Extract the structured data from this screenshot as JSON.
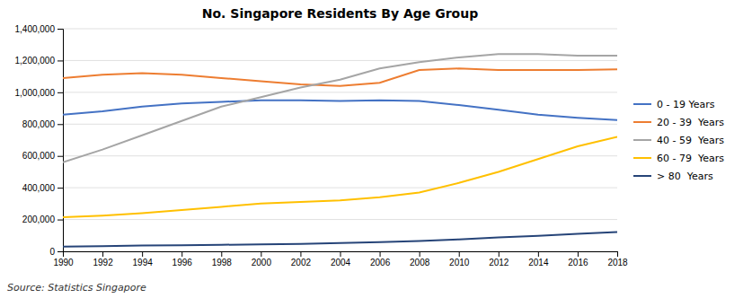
{
  "chart_data": {
    "type": "line",
    "title": "No. Singapore Residents By Age Group",
    "annotations": [
      "Source: Statistics Singapore"
    ],
    "x": [
      1990,
      1992,
      1994,
      1996,
      1998,
      2000,
      2002,
      2004,
      2006,
      2008,
      2010,
      2012,
      2014,
      2016,
      2018
    ],
    "xlim": [
      1990,
      2018
    ],
    "xticks": [
      1990,
      1992,
      1994,
      1996,
      1998,
      2000,
      2002,
      2004,
      2006,
      2008,
      2010,
      2012,
      2014,
      2016,
      2018
    ],
    "series": [
      {
        "name": "0 - 19 Years",
        "color": "#4472C4",
        "values": [
          860000,
          880000,
          910000,
          930000,
          940000,
          950000,
          950000,
          945000,
          950000,
          945000,
          920000,
          890000,
          860000,
          840000,
          825000
        ]
      },
      {
        "name": "20 - 39  Years",
        "color": "#ED7D31",
        "values": [
          1090000,
          1110000,
          1120000,
          1110000,
          1090000,
          1070000,
          1050000,
          1040000,
          1060000,
          1140000,
          1150000,
          1140000,
          1140000,
          1140000,
          1145000
        ]
      },
      {
        "name": "40 - 59  Years",
        "color": "#A5A5A5",
        "values": [
          560000,
          640000,
          730000,
          820000,
          910000,
          970000,
          1030000,
          1080000,
          1150000,
          1190000,
          1220000,
          1240000,
          1240000,
          1230000,
          1230000
        ]
      },
      {
        "name": "60 - 79  Years",
        "color": "#FFC000",
        "values": [
          215000,
          225000,
          240000,
          260000,
          280000,
          300000,
          310000,
          320000,
          340000,
          370000,
          430000,
          500000,
          580000,
          660000,
          720000
        ]
      },
      {
        "name": "> 80  Years",
        "color": "#264478",
        "values": [
          30000,
          33000,
          36000,
          38000,
          41000,
          44000,
          47000,
          52000,
          58000,
          65000,
          75000,
          88000,
          98000,
          110000,
          122000
        ]
      }
    ],
    "ylim": [
      0,
      1400000
    ],
    "yticks": [
      0,
      {
        "value": 200000,
        "label": "200,000"
      },
      {
        "value": 400000,
        "label": "400,000"
      },
      {
        "value": 600000,
        "label": "600,000"
      },
      {
        "value": 800000,
        "label": "800,000"
      },
      {
        "value": 1000000,
        "label": "1,000,000"
      },
      {
        "value": 1200000,
        "label": "1,200,000"
      },
      {
        "value": 1400000,
        "label": "1,400,000"
      }
    ],
    "grid": true,
    "legend": "right"
  }
}
